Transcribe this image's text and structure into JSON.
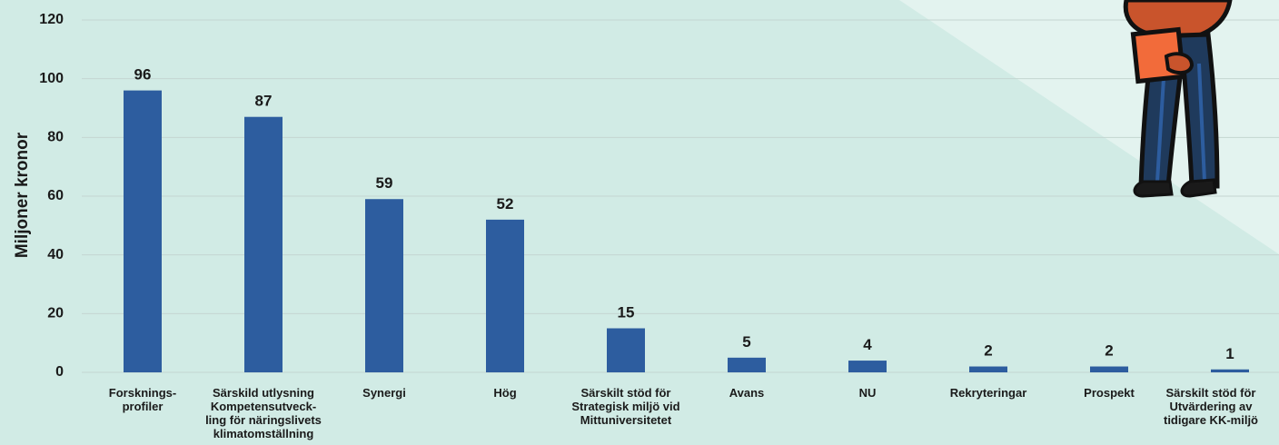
{
  "chart_data": {
    "type": "bar",
    "ylabel": "Miljoner kronor",
    "xlabel": "",
    "ylim": [
      0,
      120
    ],
    "yticks": [
      0,
      20,
      40,
      60,
      80,
      100,
      120
    ],
    "grid": true,
    "categories": [
      "Forsknings-\nprofiler",
      "Särskild utlysning\nKompetensutveck-\nling för näringslivets\nklimatomställning",
      "Synergi",
      "Hög",
      "Särskilt stöd för\nStrategisk miljö vid\nMittuniversitetet",
      "Avans",
      "NU",
      "Rekryteringar",
      "Prospekt",
      "Särskilt stöd för\nUtvärdering av\ntidigare KK-miljö"
    ],
    "values": [
      96,
      87,
      59,
      52,
      15,
      5,
      4,
      2,
      2,
      1
    ],
    "colors": {
      "bar": "#2d5d9f",
      "grid": "#c4d6d1",
      "background": "#e3f3ef",
      "background_shade": "#d1ebe5"
    }
  },
  "decoration": {
    "illustration": "person-holding-folder-illustration"
  }
}
